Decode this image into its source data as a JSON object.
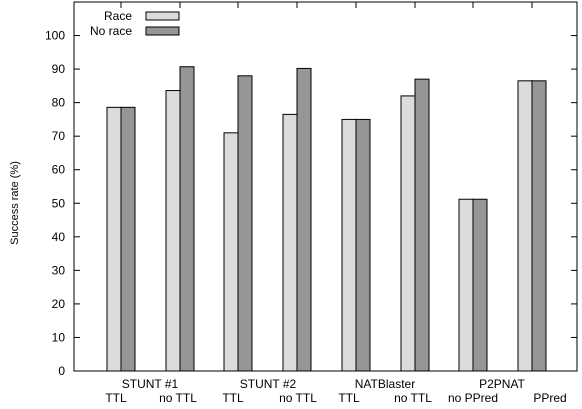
{
  "chart_data": {
    "type": "bar",
    "title": "",
    "xlabel": "",
    "ylabel": "Success rate (%)",
    "ylim": [
      0,
      110
    ],
    "yticks": [
      0,
      10,
      20,
      30,
      40,
      50,
      60,
      70,
      80,
      90,
      100
    ],
    "grid": false,
    "legend_position": "top-left",
    "groups": [
      {
        "name": "STUNT #1",
        "subcategories": [
          "TTL",
          "no TTL"
        ]
      },
      {
        "name": "STUNT #2",
        "subcategories": [
          "TTL",
          "no TTL"
        ]
      },
      {
        "name": "NATBlaster",
        "subcategories": [
          "TTL",
          "no TTL"
        ]
      },
      {
        "name": "P2PNAT",
        "subcategories": [
          "no PPred",
          "PPred"
        ]
      }
    ],
    "categories": [
      "STUNT #1 TTL",
      "STUNT #1 no TTL",
      "STUNT #2 TTL",
      "STUNT #2 no TTL",
      "NATBlaster TTL",
      "NATBlaster no TTL",
      "P2PNAT no PPred",
      "P2PNAT PPred"
    ],
    "series": [
      {
        "name": "Race",
        "color": "#dcdcdc",
        "values": [
          78.6,
          83.6,
          71.0,
          76.5,
          75.0,
          82.0,
          51.2,
          86.5
        ]
      },
      {
        "name": "No race",
        "color": "#969696",
        "values": [
          78.6,
          90.7,
          88.0,
          90.2,
          75.0,
          87.0,
          51.2,
          86.5
        ]
      }
    ]
  }
}
